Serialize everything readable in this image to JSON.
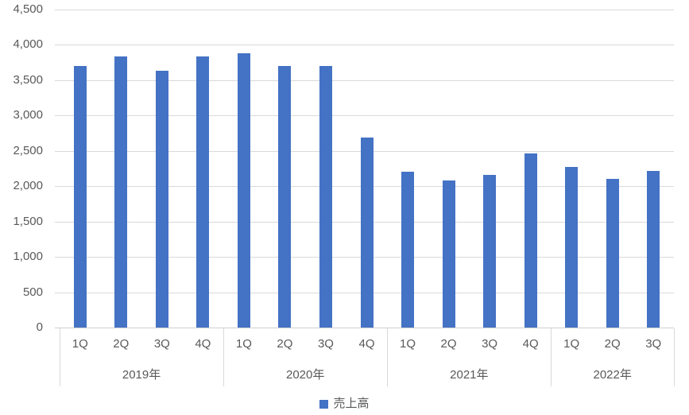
{
  "chart_data": {
    "type": "bar",
    "title": "",
    "legend_label": "売上高",
    "legend_position": "bottom",
    "grid": true,
    "bar_color": "#4472C4",
    "grid_color": "#D9D9D9",
    "text_color": "#595959",
    "ylim": [
      0,
      4500
    ],
    "ytick_step": 500,
    "ytick_labels": [
      "0",
      "500",
      "1,000",
      "1,500",
      "2,000",
      "2,500",
      "3,000",
      "3,500",
      "4,000",
      "4,500"
    ],
    "groups": [
      {
        "year": "2019年",
        "quarters": [
          "1Q",
          "2Q",
          "3Q",
          "4Q"
        ],
        "values": [
          3700,
          3840,
          3630,
          3840
        ]
      },
      {
        "year": "2020年",
        "quarters": [
          "1Q",
          "2Q",
          "3Q",
          "4Q"
        ],
        "values": [
          3880,
          3700,
          3700,
          2690
        ]
      },
      {
        "year": "2021年",
        "quarters": [
          "1Q",
          "2Q",
          "3Q",
          "4Q"
        ],
        "values": [
          2210,
          2080,
          2160,
          2460
        ]
      },
      {
        "year": "2022年",
        "quarters": [
          "1Q",
          "2Q",
          "3Q"
        ],
        "values": [
          2270,
          2100,
          2220
        ]
      }
    ]
  }
}
